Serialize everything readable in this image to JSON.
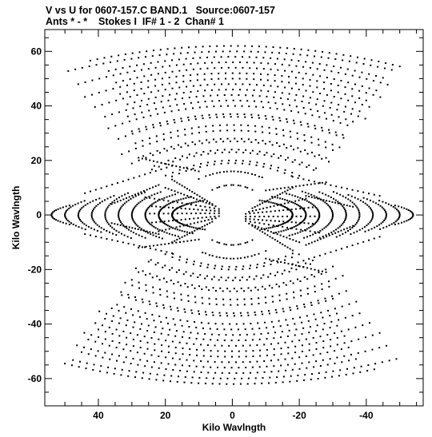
{
  "header": {
    "line1": "V vs U for 0607-157.C BAND.1   Source:0607-157",
    "line2": "Ants * - *    Stokes I  IF# 1 - 2  Chan# 1"
  },
  "chart_data": {
    "type": "scatter",
    "title": "V vs U for 0607-157.C BAND.1   Source:0607-157",
    "subtitle": "Ants * - *    Stokes I  IF# 1 - 2  Chan# 1",
    "xlabel": "Kilo Wavlngth",
    "ylabel": "Kilo Wavlngth",
    "xlim": [
      56,
      -57
    ],
    "ylim": [
      -70,
      68
    ],
    "x_ticks": [
      40,
      20,
      0,
      -20,
      -40
    ],
    "y_ticks": [
      60,
      40,
      20,
      0,
      -20,
      -40,
      -60
    ],
    "x_tick_labels": [
      "40",
      "20",
      "0",
      "-20",
      "-40"
    ],
    "y_tick_labels": [
      "60",
      "40",
      "20",
      "0",
      "-20",
      "-40",
      "-60"
    ],
    "grid": false,
    "marker_color": "#000000",
    "tracks": [
      {
        "u0": 4,
        "v0": 2.2,
        "u1": 26,
        "v1": 6.5
      },
      {
        "u0": 4,
        "v0": 1.4,
        "u1": 24,
        "v1": 3.2
      },
      {
        "u0": 4,
        "v0": 0.6,
        "u1": 26,
        "v1": 0.5
      },
      {
        "u0": 4,
        "v0": -0.4,
        "u1": 24,
        "v1": -2.8
      },
      {
        "u0": 5,
        "v0": -1.2,
        "u1": 22,
        "v1": -6.0
      },
      {
        "u0": 5,
        "v0": 3.2,
        "u1": 20,
        "v1": 10.0
      },
      {
        "u0": 6,
        "v0": 4.0,
        "u1": 18,
        "v1": 13.0
      },
      {
        "u0": 10,
        "v0": 16,
        "u1": 28,
        "v1": 21
      },
      {
        "u0": 10,
        "v0": -9,
        "u1": 28,
        "v1": -12
      },
      {
        "u0": 6,
        "v0": -2.5,
        "u1": 18,
        "v1": -10
      },
      {
        "u0": 22,
        "v0": 11,
        "u1": 36,
        "v1": 4
      },
      {
        "u0": 22,
        "v0": -7,
        "u1": 36,
        "v1": -3
      },
      {
        "u0": 18,
        "v0": 18,
        "u1": 44,
        "v1": 8
      },
      {
        "u0": 18,
        "v0": -14,
        "u1": 44,
        "v1": -7
      }
    ],
    "arcs": [
      {
        "a": 54,
        "b": 8,
        "v0": 0,
        "tmin": -0.45,
        "tmax": 0.45
      },
      {
        "a": 50,
        "b": 11,
        "v0": 0,
        "tmin": -0.5,
        "tmax": 0.5
      },
      {
        "a": 46,
        "b": 12,
        "v0": 0,
        "tmin": -0.55,
        "tmax": 0.55
      },
      {
        "a": 42,
        "b": 13,
        "v0": 0,
        "tmin": -0.6,
        "tmax": 0.6
      },
      {
        "a": 38,
        "b": 14,
        "v0": 0,
        "tmin": -0.65,
        "tmax": 0.65
      },
      {
        "a": 34,
        "b": 13,
        "v0": 0,
        "tmin": -0.7,
        "tmax": 0.7
      },
      {
        "a": 30,
        "b": 12,
        "v0": 0,
        "tmin": -0.8,
        "tmax": 0.8
      },
      {
        "a": 26,
        "b": 10,
        "v0": 0,
        "tmin": -0.9,
        "tmax": 0.9
      },
      {
        "a": 22,
        "b": 8,
        "v0": 0,
        "tmin": -1.0,
        "tmax": 1.0
      },
      {
        "a": 18,
        "b": 6,
        "v0": 0,
        "tmin": -1.1,
        "tmax": 1.1
      }
    ],
    "bands": [
      {
        "v": 62,
        "k": 0.003,
        "umin": -50,
        "umax": 43
      },
      {
        "v": 58,
        "k": 0.0038,
        "umin": -45,
        "umax": 39
      },
      {
        "v": 54,
        "k": 0.0045,
        "umin": -43,
        "umax": 36
      },
      {
        "v": 50,
        "k": 0.005,
        "umin": -40,
        "umax": 34
      },
      {
        "v": 46,
        "k": 0.0055,
        "umin": -38,
        "umax": 33
      },
      {
        "v": 42,
        "k": 0.006,
        "umin": -36,
        "umax": 33
      },
      {
        "v": 37,
        "k": 0.007,
        "umin": -33,
        "umax": 32
      },
      {
        "v": 33,
        "k": 0.008,
        "umin": -32,
        "umax": 30
      },
      {
        "v": 28,
        "k": 0.009,
        "umin": -28,
        "umax": 28
      },
      {
        "v": 24,
        "k": 0.011,
        "umin": -25,
        "umax": 25
      },
      {
        "v": 20,
        "k": 0.014,
        "umin": -20,
        "umax": 20
      },
      {
        "v": 16,
        "k": 0.03,
        "umin": -8,
        "umax": 8
      },
      {
        "v": 11,
        "k": 0.05,
        "umin": -6,
        "umax": 6
      },
      {
        "v": -11,
        "k": -0.05,
        "umin": -6,
        "umax": 6
      },
      {
        "v": -16,
        "k": -0.028,
        "umin": -10,
        "umax": 10
      },
      {
        "v": -19,
        "k": -0.015,
        "umin": -18,
        "umax": 18
      },
      {
        "v": -23,
        "k": -0.011,
        "umin": -24,
        "umax": 26
      },
      {
        "v": -27,
        "k": -0.009,
        "umin": -30,
        "umax": 30
      },
      {
        "v": -31,
        "k": -0.008,
        "umin": -33,
        "umax": 32
      },
      {
        "v": -36,
        "k": -0.007,
        "umin": -34,
        "umax": 34
      },
      {
        "v": -40,
        "k": -0.006,
        "umin": -37,
        "umax": 36
      },
      {
        "v": -44,
        "k": -0.0055,
        "umin": -38,
        "umax": 40
      },
      {
        "v": -48,
        "k": -0.005,
        "umin": -41,
        "umax": 43
      },
      {
        "v": -52,
        "k": -0.0045,
        "umin": -44,
        "umax": 45
      },
      {
        "v": -56,
        "k": -0.0038,
        "umin": -46,
        "umax": 47
      },
      {
        "v": -60,
        "k": -0.003,
        "umin": -49,
        "umax": 49
      }
    ]
  }
}
